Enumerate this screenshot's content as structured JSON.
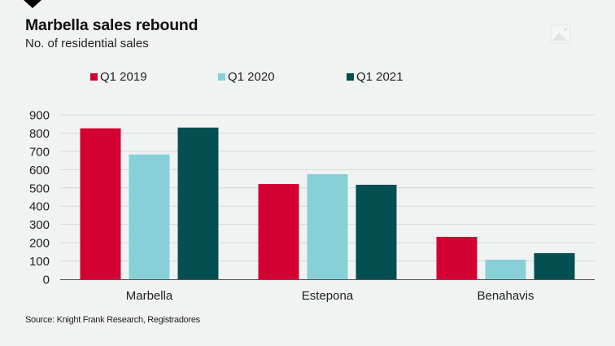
{
  "header": {
    "title": "Marbella sales rebound",
    "subtitle": "No. of residential sales",
    "image_placeholder_icon": "image-placeholder-icon"
  },
  "footer": {
    "source": "Source: Knight Frank Research, Registradores"
  },
  "chart_data": {
    "type": "bar",
    "title": "Marbella sales rebound",
    "subtitle": "No. of residential sales",
    "xlabel": "",
    "ylabel": "",
    "categories": [
      "Marbella",
      "Estepona",
      "Benahavis"
    ],
    "series": [
      {
        "name": "Q1 2019",
        "color": "#d50032",
        "values": [
          826,
          521,
          232
        ]
      },
      {
        "name": "Q1 2020",
        "color": "#88d0d8",
        "values": [
          683,
          575,
          107
        ]
      },
      {
        "name": "Q1 2021",
        "color": "#034f52",
        "values": [
          830,
          517,
          143
        ]
      }
    ],
    "ylim": [
      0,
      900
    ],
    "yticks": [
      0,
      100,
      200,
      300,
      400,
      500,
      600,
      700,
      800,
      900
    ],
    "grid": true,
    "legend": "top",
    "source": "Source: Knight Frank Research, Registradores"
  }
}
